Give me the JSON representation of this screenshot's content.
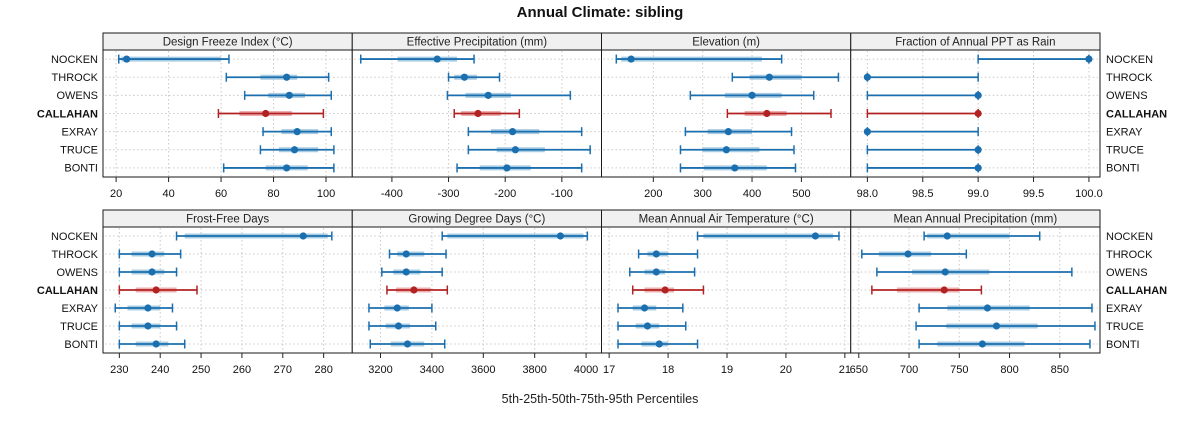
{
  "title": "Annual Climate: sibling",
  "caption": "5th-25th-50th-75th-95th Percentiles",
  "sites": [
    "NOCKEN",
    "THROCK",
    "OWENS",
    "CALLAHAN",
    "EXRAY",
    "TRUCE",
    "BONTI"
  ],
  "highlight_site": "CALLAHAN",
  "colors": {
    "blue": "#1b6fae",
    "blue_band": "#a8cce4",
    "red": "#b22222",
    "red_band": "#edafaf",
    "grid": "#c9c9c9",
    "header_bg": "#f0f0f0",
    "border": "#1a1a1a",
    "text": "#111111"
  },
  "chart_data": {
    "type": "dotplot-errorbar-trellis",
    "layout": "2 rows x 4 cols, site labels on left and right, grid dotted, no legend",
    "percentiles": [
      5,
      25,
      50,
      75,
      95
    ],
    "panels": [
      {
        "title": "Design Freeze Index (°C)",
        "xlim": [
          15,
          110
        ],
        "ticks": [
          20,
          40,
          60,
          80,
          100
        ],
        "tick_labels": [
          "20",
          "40",
          "60",
          "80",
          "100"
        ],
        "values": {
          "NOCKEN": [
            21,
            22,
            24,
            60,
            63
          ],
          "THROCK": [
            62,
            75,
            85,
            89,
            101
          ],
          "OWENS": [
            69,
            78,
            86,
            92,
            102
          ],
          "CALLAHAN": [
            59,
            67,
            77,
            87,
            99
          ],
          "EXRAY": [
            76,
            83,
            89,
            97,
            102
          ],
          "TRUCE": [
            75,
            82,
            88,
            97,
            103
          ],
          "BONTI": [
            61,
            77,
            85,
            93,
            103
          ]
        }
      },
      {
        "title": "Effective Precipitation (mm)",
        "xlim": [
          -470,
          -30
        ],
        "ticks": [
          -400,
          -300,
          -200,
          -100
        ],
        "tick_labels": [
          "-400",
          "-300",
          "-200",
          "-100"
        ],
        "values": {
          "NOCKEN": [
            -455,
            -390,
            -320,
            -285,
            -255
          ],
          "THROCK": [
            -300,
            -290,
            -272,
            -250,
            -210
          ],
          "OWENS": [
            -302,
            -270,
            -230,
            -190,
            -85
          ],
          "CALLAHAN": [
            -290,
            -278,
            -248,
            -208,
            -175
          ],
          "EXRAY": [
            -265,
            -225,
            -187,
            -140,
            -65
          ],
          "TRUCE": [
            -265,
            -215,
            -182,
            -130,
            -50
          ],
          "BONTI": [
            -285,
            -245,
            -197,
            -155,
            -65
          ]
        }
      },
      {
        "title": "Elevation (m)",
        "xlim": [
          95,
          600
        ],
        "ticks": [
          200,
          300,
          400,
          500
        ],
        "tick_labels": [
          "200",
          "300",
          "400",
          "500"
        ],
        "values": {
          "NOCKEN": [
            125,
            135,
            155,
            420,
            460
          ],
          "THROCK": [
            360,
            395,
            435,
            500,
            575
          ],
          "OWENS": [
            275,
            345,
            400,
            460,
            525
          ],
          "CALLAHAN": [
            350,
            385,
            430,
            470,
            560
          ],
          "EXRAY": [
            265,
            310,
            352,
            400,
            480
          ],
          "TRUCE": [
            255,
            300,
            348,
            415,
            485
          ],
          "BONTI": [
            255,
            302,
            365,
            430,
            488
          ]
        }
      },
      {
        "title": "Fraction of Annual PPT as Rain",
        "xlim": [
          97.85,
          100.1
        ],
        "ticks": [
          98.0,
          98.5,
          99.0,
          99.5,
          100.0
        ],
        "tick_labels": [
          "98.0",
          "98.5",
          "99.0",
          "99.5",
          "100.0"
        ],
        "values": {
          "NOCKEN": [
            99,
            100,
            100,
            100,
            100
          ],
          "THROCK": [
            98,
            98,
            98,
            98,
            99
          ],
          "OWENS": [
            98,
            99,
            99,
            99,
            99
          ],
          "CALLAHAN": [
            98,
            99,
            99,
            99,
            99
          ],
          "EXRAY": [
            98,
            98,
            98,
            98,
            99
          ],
          "TRUCE": [
            98,
            99,
            99,
            99,
            99
          ],
          "BONTI": [
            98,
            99,
            99,
            99,
            99
          ]
        }
      },
      {
        "title": "Frost-Free Days",
        "xlim": [
          226,
          287
        ],
        "ticks": [
          230,
          240,
          250,
          260,
          270,
          280
        ],
        "tick_labels": [
          "230",
          "240",
          "250",
          "260",
          "270",
          "280"
        ],
        "values": {
          "NOCKEN": [
            244,
            246,
            275,
            281,
            282
          ],
          "THROCK": [
            230,
            233,
            238,
            241,
            245
          ],
          "OWENS": [
            230,
            233,
            238,
            241,
            244
          ],
          "CALLAHAN": [
            230,
            234,
            239,
            244,
            249
          ],
          "EXRAY": [
            229,
            232,
            237,
            240,
            243
          ],
          "TRUCE": [
            230,
            233,
            237,
            240,
            244
          ],
          "BONTI": [
            230,
            234,
            239,
            242,
            246
          ]
        }
      },
      {
        "title": "Growing Degree Days (°C)",
        "xlim": [
          3090,
          4060
        ],
        "ticks": [
          3200,
          3400,
          3600,
          3800,
          4000
        ],
        "tick_labels": [
          "3200",
          "3400",
          "3600",
          "3800",
          "4000"
        ],
        "values": {
          "NOCKEN": [
            3440,
            3460,
            3900,
            3990,
            4005
          ],
          "THROCK": [
            3235,
            3265,
            3300,
            3370,
            3455
          ],
          "OWENS": [
            3205,
            3250,
            3300,
            3355,
            3440
          ],
          "CALLAHAN": [
            3225,
            3260,
            3330,
            3395,
            3460
          ],
          "EXRAY": [
            3155,
            3215,
            3265,
            3310,
            3400
          ],
          "TRUCE": [
            3155,
            3220,
            3270,
            3315,
            3415
          ],
          "BONTI": [
            3160,
            3240,
            3305,
            3370,
            3450
          ]
        }
      },
      {
        "title": "Mean Annual Air Temperature (°C)",
        "xlim": [
          16.87,
          21.1
        ],
        "ticks": [
          17,
          18,
          19,
          20,
          21
        ],
        "tick_labels": [
          "17",
          "18",
          "19",
          "20",
          "21"
        ],
        "values": {
          "NOCKEN": [
            18.5,
            18.6,
            20.5,
            20.8,
            20.9
          ],
          "THROCK": [
            17.5,
            17.65,
            17.8,
            18.0,
            18.5
          ],
          "OWENS": [
            17.35,
            17.6,
            17.8,
            17.95,
            18.45
          ],
          "CALLAHAN": [
            17.4,
            17.6,
            17.95,
            18.1,
            18.6
          ],
          "EXRAY": [
            17.15,
            17.4,
            17.6,
            17.8,
            18.25
          ],
          "TRUCE": [
            17.15,
            17.45,
            17.65,
            17.85,
            18.3
          ],
          "BONTI": [
            17.15,
            17.55,
            17.85,
            18.0,
            18.5
          ]
        }
      },
      {
        "title": "Mean Annual Precipitation (mm)",
        "xlim": [
          642,
          890
        ],
        "ticks": [
          650,
          700,
          750,
          800,
          850
        ],
        "tick_labels": [
          "650",
          "700",
          "750",
          "800",
          "850"
        ],
        "values": {
          "NOCKEN": [
            715,
            718,
            738,
            800,
            830
          ],
          "THROCK": [
            653,
            670,
            699,
            722,
            757
          ],
          "OWENS": [
            668,
            703,
            736,
            780,
            862
          ],
          "CALLAHAN": [
            663,
            688,
            735,
            750,
            772
          ],
          "EXRAY": [
            710,
            738,
            778,
            820,
            882
          ],
          "TRUCE": [
            707,
            737,
            787,
            828,
            885
          ],
          "BONTI": [
            710,
            728,
            773,
            815,
            880
          ]
        }
      }
    ]
  }
}
